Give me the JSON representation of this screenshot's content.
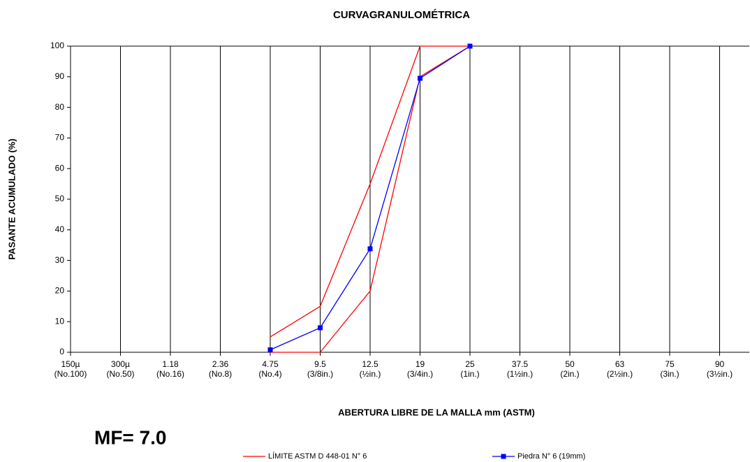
{
  "chart_data": {
    "type": "line",
    "title": "CURVAGRANULOMÉTRICA",
    "y_label": "PASANTE ACUMULADO   (%)",
    "x_label": "ABERTURA  LIBRE DE LA MALLA mm (ASTM)",
    "annotation": "MF= 7.0",
    "categories": [
      "150µ",
      "300µ",
      "1.18",
      "2.36",
      "4.75",
      "9.5",
      "12.5",
      "19",
      "25",
      "37.5",
      "50",
      "63",
      "75",
      "90"
    ],
    "category_notes": [
      "(No.100)",
      "(No.50)",
      "(No.16)",
      "(No.8)",
      "(No.4)",
      "(3/8in.)",
      "(½in.)",
      "(3/4in.)",
      "(1in.)",
      "(1½in.)",
      "(2in.)",
      "(2½in.)",
      "(3in.)",
      "(3½in.)"
    ],
    "ylim": [
      0,
      100
    ],
    "yticks": [
      0,
      10,
      20,
      30,
      40,
      50,
      60,
      70,
      80,
      90,
      100
    ],
    "grid": true,
    "series": [
      {
        "name": "LÍMITE ASTM D 448-01 N° 6",
        "color": "#ff0000",
        "marker": false,
        "values": [
          null,
          null,
          null,
          null,
          5,
          15,
          55,
          100,
          100,
          null,
          null,
          null,
          null,
          null
        ],
        "lower_values": [
          null,
          null,
          null,
          null,
          0,
          0,
          20,
          90,
          100,
          null,
          null,
          null,
          null,
          null
        ]
      },
      {
        "name": "Piedra N° 6 (19mm)",
        "color": "#0000ff",
        "marker": true,
        "values": [
          null,
          null,
          null,
          null,
          0.8,
          8,
          33.8,
          89.5,
          100,
          null,
          null,
          null,
          null,
          null
        ]
      }
    ]
  }
}
